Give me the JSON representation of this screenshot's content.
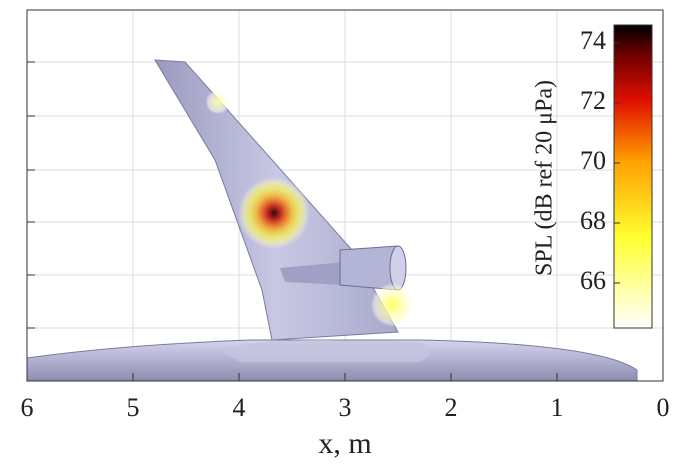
{
  "chart_data": {
    "type": "source-map",
    "xlabel": "x, m",
    "xlim": [
      6,
      0
    ],
    "xticks": [
      6,
      5,
      4,
      3,
      2,
      1,
      0
    ],
    "grid": true,
    "colorbar_label": "SPL (dB ref 20 μPa)",
    "clim": [
      64.5,
      74.6
    ],
    "cticks": [
      66,
      68,
      70,
      72,
      74
    ],
    "sources": {
      "x": [
        3.67,
        2.55,
        4.2
      ],
      "spl": [
        74.3,
        67,
        66
      ]
    }
  }
}
